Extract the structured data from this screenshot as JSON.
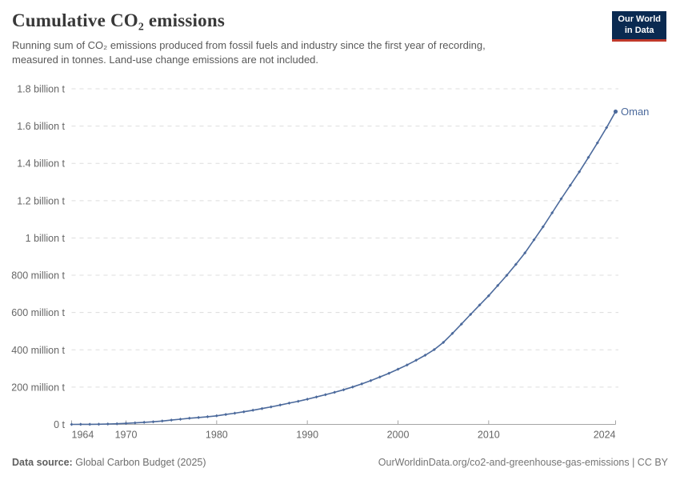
{
  "header": {
    "title": "Cumulative CO₂ emissions",
    "subtitle_line1": "Running sum of CO₂ emissions produced from fossil fuels and industry since the first year of recording,",
    "subtitle_line2": "measured in tonnes. Land-use change emissions are not included.",
    "logo_line1": "Our World",
    "logo_line2": "in Data"
  },
  "footer": {
    "source_label": "Data source:",
    "source_value": "Global Carbon Budget (2025)",
    "link_text": "OurWorldinData.org/co2-and-greenhouse-gas-emissions | CC BY"
  },
  "colors": {
    "line_blue": "#4C6A9C",
    "grid": "#DDDDDD",
    "axis_line": "#A5A5A5",
    "axis_text": "#666666",
    "title_text": "#383838",
    "subtitle_text": "#595959",
    "logo_navy": "#0A2A51",
    "logo_red": "#C0392B"
  },
  "chart_data": {
    "type": "line",
    "title": "Cumulative CO₂ emissions",
    "ylabel": "",
    "xlabel": "",
    "unit": "tonnes (series values given in million tonnes)",
    "grid": "horizontal dashed gridlines",
    "legend": "end-of-line label",
    "xlim": [
      1964,
      2024
    ],
    "ylim_mt": [
      0,
      1800
    ],
    "x_ticks": [
      {
        "year": 1964,
        "label": "1964",
        "align": "start"
      },
      {
        "year": 1970,
        "label": "1970",
        "align": "middle"
      },
      {
        "year": 1980,
        "label": "1980",
        "align": "middle"
      },
      {
        "year": 1990,
        "label": "1990",
        "align": "middle"
      },
      {
        "year": 2000,
        "label": "2000",
        "align": "middle"
      },
      {
        "year": 2010,
        "label": "2010",
        "align": "middle"
      },
      {
        "year": 2024,
        "label": "2024",
        "align": "end"
      }
    ],
    "y_ticks": [
      {
        "mt": 0,
        "label": "0 t"
      },
      {
        "mt": 200,
        "label": "200 million t"
      },
      {
        "mt": 400,
        "label": "400 million t"
      },
      {
        "mt": 600,
        "label": "600 million t"
      },
      {
        "mt": 800,
        "label": "800 million t"
      },
      {
        "mt": 1000,
        "label": "1 billion t"
      },
      {
        "mt": 1200,
        "label": "1.2 billion t"
      },
      {
        "mt": 1400,
        "label": "1.4 billion t"
      },
      {
        "mt": 1600,
        "label": "1.6 billion t"
      },
      {
        "mt": 1800,
        "label": "1.8 billion t"
      }
    ],
    "series": [
      {
        "name": "Oman",
        "color": "#4C6A9C",
        "years": [
          1964,
          1965,
          1966,
          1967,
          1968,
          1969,
          1970,
          1971,
          1972,
          1973,
          1974,
          1975,
          1976,
          1977,
          1978,
          1979,
          1980,
          1981,
          1982,
          1983,
          1984,
          1985,
          1986,
          1987,
          1988,
          1989,
          1990,
          1991,
          1992,
          1993,
          1994,
          1995,
          1996,
          1997,
          1998,
          1999,
          2000,
          2001,
          2002,
          2003,
          2004,
          2005,
          2006,
          2007,
          2008,
          2009,
          2010,
          2011,
          2012,
          2013,
          2014,
          2015,
          2016,
          2017,
          2018,
          2019,
          2020,
          2021,
          2022,
          2023,
          2024
        ],
        "values_mt": [
          0.1,
          0.3,
          0.5,
          1,
          2,
          3.5,
          5.5,
          8,
          11,
          14,
          18,
          23,
          28,
          33,
          37,
          41,
          46,
          53,
          60,
          68,
          76,
          85,
          94,
          104,
          114,
          124,
          135,
          147,
          159,
          172,
          186,
          201,
          217,
          235,
          254,
          274,
          296,
          319,
          344,
          371,
          401,
          440,
          488,
          538,
          590,
          640,
          690,
          745,
          800,
          858,
          920,
          990,
          1060,
          1135,
          1210,
          1282,
          1355,
          1432,
          1510,
          1592,
          1678
        ]
      }
    ]
  }
}
